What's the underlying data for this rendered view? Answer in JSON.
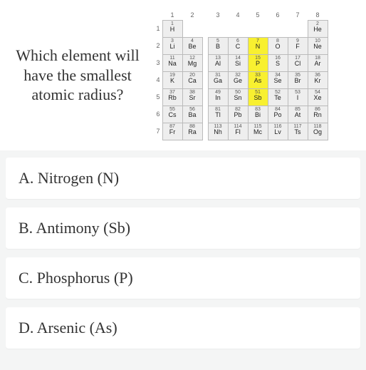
{
  "question": "Which element will have the smallest atomic radius?",
  "columns": [
    "1",
    "2",
    "3",
    "4",
    "5",
    "6",
    "7",
    "8"
  ],
  "rows": [
    "1",
    "2",
    "3",
    "4",
    "5",
    "6",
    "7"
  ],
  "split_after_col": 2,
  "cells": [
    [
      {
        "n": "1",
        "s": "H"
      },
      null,
      null,
      null,
      null,
      null,
      null,
      {
        "n": "2",
        "s": "He"
      }
    ],
    [
      {
        "n": "3",
        "s": "Li"
      },
      {
        "n": "4",
        "s": "Be"
      },
      {
        "n": "5",
        "s": "B"
      },
      {
        "n": "6",
        "s": "C"
      },
      {
        "n": "7",
        "s": "N",
        "hl": true
      },
      {
        "n": "8",
        "s": "O"
      },
      {
        "n": "9",
        "s": "F"
      },
      {
        "n": "10",
        "s": "Ne"
      }
    ],
    [
      {
        "n": "11",
        "s": "Na"
      },
      {
        "n": "12",
        "s": "Mg"
      },
      {
        "n": "13",
        "s": "Al"
      },
      {
        "n": "14",
        "s": "Si"
      },
      {
        "n": "15",
        "s": "P",
        "hl": true
      },
      {
        "n": "16",
        "s": "S"
      },
      {
        "n": "17",
        "s": "Cl"
      },
      {
        "n": "18",
        "s": "Ar"
      }
    ],
    [
      {
        "n": "19",
        "s": "K"
      },
      {
        "n": "20",
        "s": "Ca"
      },
      {
        "n": "31",
        "s": "Ga"
      },
      {
        "n": "32",
        "s": "Ge"
      },
      {
        "n": "33",
        "s": "As",
        "hl": true
      },
      {
        "n": "34",
        "s": "Se"
      },
      {
        "n": "35",
        "s": "Br"
      },
      {
        "n": "36",
        "s": "Kr"
      }
    ],
    [
      {
        "n": "37",
        "s": "Rb"
      },
      {
        "n": "38",
        "s": "Sr"
      },
      {
        "n": "49",
        "s": "In"
      },
      {
        "n": "50",
        "s": "Sn"
      },
      {
        "n": "51",
        "s": "Sb",
        "hl": true
      },
      {
        "n": "52",
        "s": "Te"
      },
      {
        "n": "53",
        "s": "I"
      },
      {
        "n": "54",
        "s": "Xe"
      }
    ],
    [
      {
        "n": "55",
        "s": "Cs"
      },
      {
        "n": "56",
        "s": "Ba"
      },
      {
        "n": "81",
        "s": "Tl"
      },
      {
        "n": "82",
        "s": "Pb"
      },
      {
        "n": "83",
        "s": "Bi"
      },
      {
        "n": "84",
        "s": "Po"
      },
      {
        "n": "85",
        "s": "At"
      },
      {
        "n": "86",
        "s": "Rn"
      }
    ],
    [
      {
        "n": "87",
        "s": "Fr"
      },
      {
        "n": "88",
        "s": "Ra"
      },
      {
        "n": "113",
        "s": "Nh"
      },
      {
        "n": "114",
        "s": "Fl"
      },
      {
        "n": "115",
        "s": "Mc"
      },
      {
        "n": "116",
        "s": "Lv"
      },
      {
        "n": "117",
        "s": "Ts"
      },
      {
        "n": "118",
        "s": "Og"
      }
    ]
  ],
  "answers": [
    {
      "letter": "A.",
      "text": "Nitrogen (N)"
    },
    {
      "letter": "B.",
      "text": "Antimony (Sb)"
    },
    {
      "letter": "C.",
      "text": "Phosphorus (P)"
    },
    {
      "letter": "D.",
      "text": "Arsenic (As)"
    }
  ],
  "colors": {
    "page_bg": "#f4f5f5",
    "card_bg": "#ffffff",
    "cell_bg": "#eeeeee",
    "highlight_bg": "#f8f030",
    "text": "#333333",
    "border": "#bbbbbb"
  }
}
